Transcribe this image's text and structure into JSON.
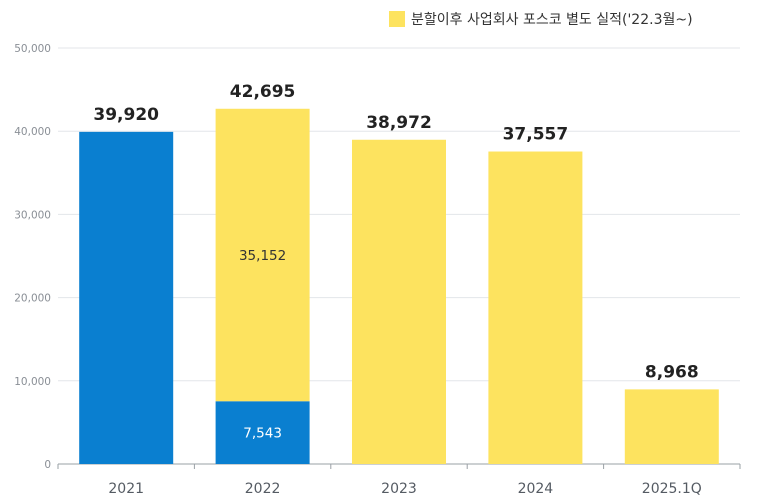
{
  "chart_data": {
    "type": "bar",
    "stacked": true,
    "categories": [
      "2021",
      "2022",
      "2023",
      "2024",
      "2025.1Q"
    ],
    "series": [
      {
        "key": "pre_split",
        "color": "#0a7fd0",
        "values": [
          39920,
          7543,
          0,
          0,
          0
        ]
      },
      {
        "key": "post_split",
        "name": "분할이후 사업회사 포스코 별도 실적('22.3월~)",
        "color": "#fde35f",
        "values": [
          0,
          35152,
          38972,
          37557,
          8968
        ]
      }
    ],
    "totals": [
      "39,920",
      "42,695",
      "38,972",
      "37,557",
      "8,968"
    ],
    "segment_labels": [
      {
        "category": "2022",
        "series": "post_split",
        "text": "35,152",
        "color": "#333333"
      },
      {
        "category": "2022",
        "series": "pre_split",
        "text": "7,543",
        "color": "#ffffff"
      }
    ],
    "yticks": [
      "0",
      "10,000",
      "20,000",
      "30,000",
      "40,000",
      "50,000"
    ],
    "ylim": [
      0,
      50000
    ],
    "grid": true,
    "legend_position": "top-right"
  }
}
